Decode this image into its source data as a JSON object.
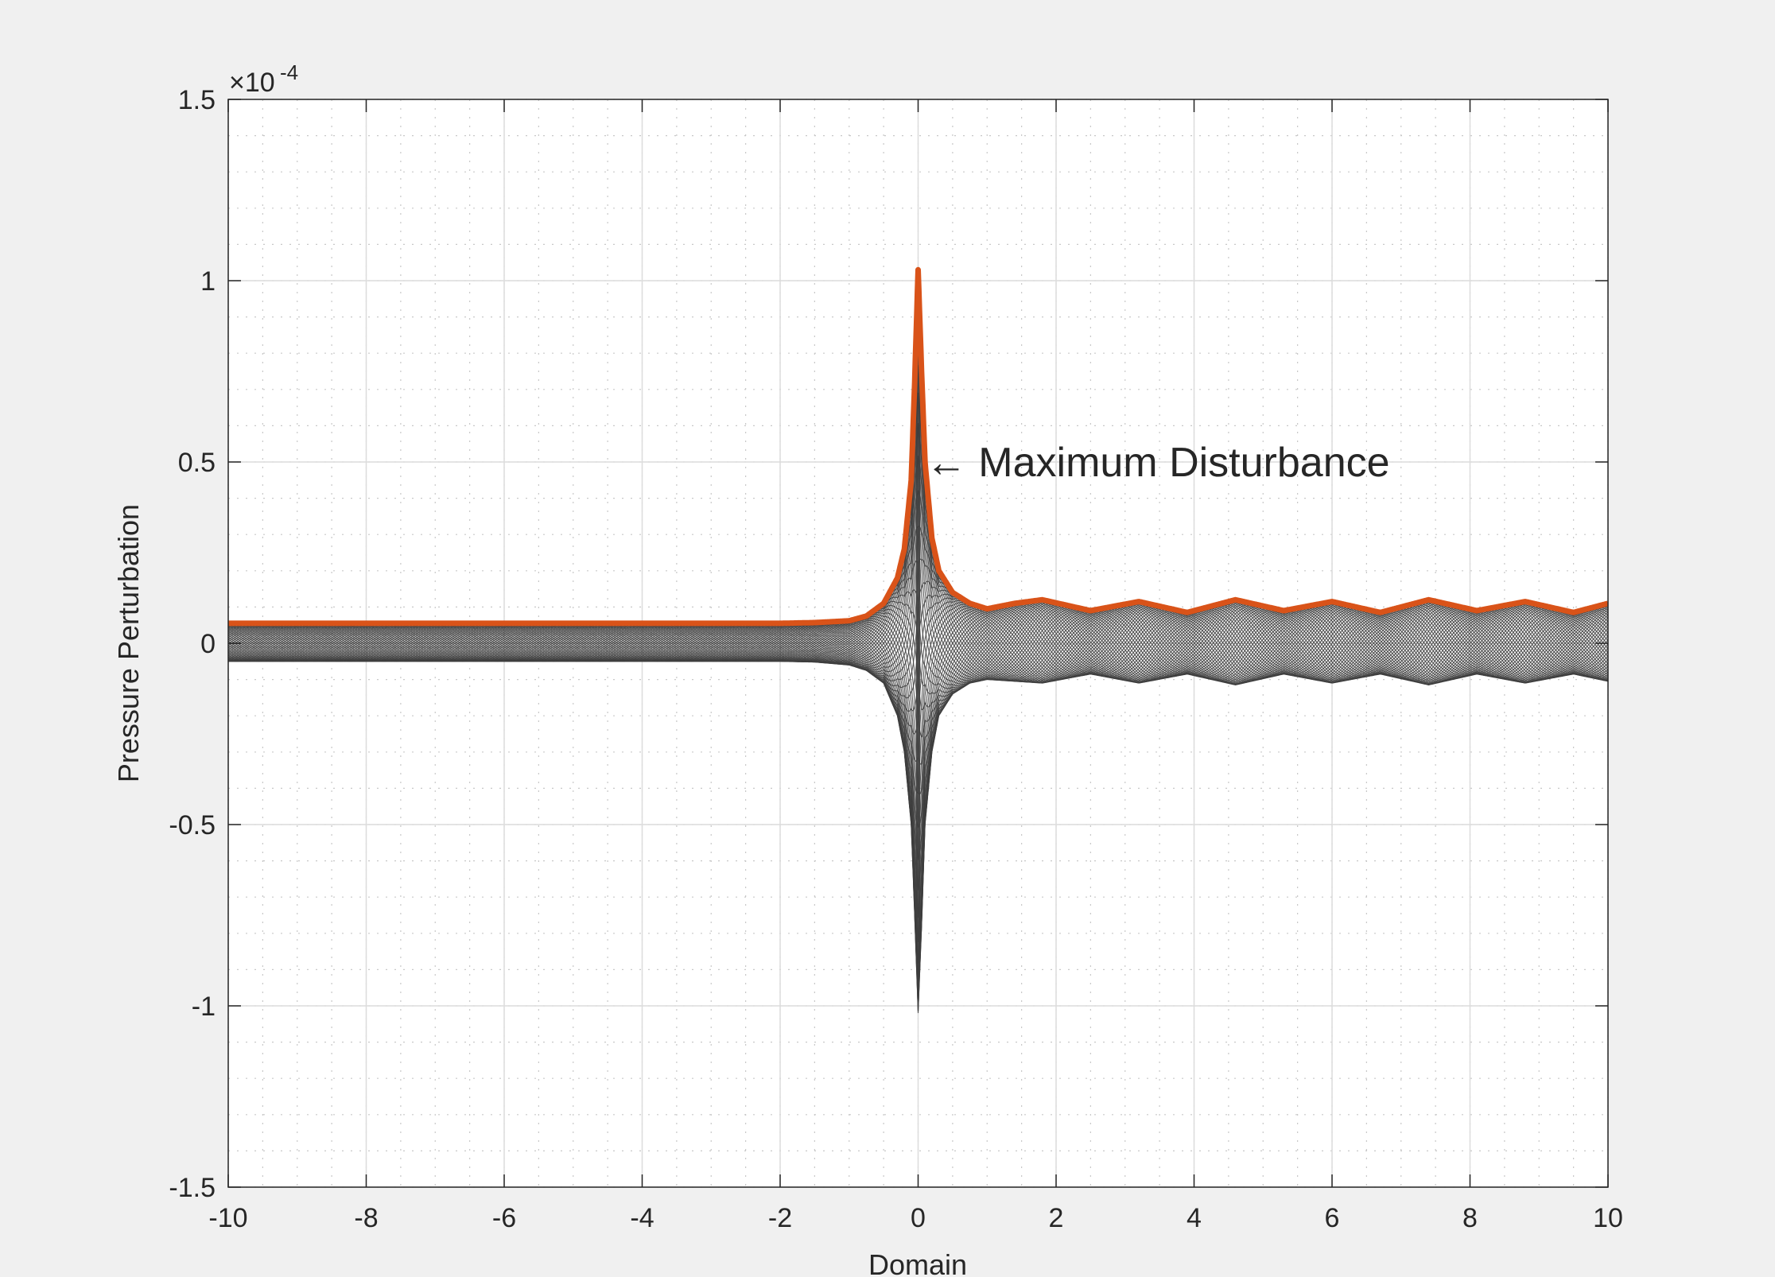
{
  "chart_data": {
    "type": "line",
    "title": "",
    "xlabel": "Domain",
    "ylabel": "Pressure Perturbation",
    "exponent_label": "×10",
    "exponent_power": "-4",
    "xlim": [
      -10,
      10
    ],
    "ylim": [
      -1.5,
      1.5
    ],
    "y_scale_factor": 0.0001,
    "x_ticks": [
      -10,
      -8,
      -6,
      -4,
      -2,
      0,
      2,
      4,
      6,
      8,
      10
    ],
    "x_tick_labels": [
      "-10",
      "-8",
      "-6",
      "-4",
      "-2",
      "0",
      "2",
      "4",
      "6",
      "8",
      "10"
    ],
    "y_ticks": [
      -1.5,
      -1,
      -0.5,
      0,
      0.5,
      1,
      1.5
    ],
    "y_tick_labels": [
      "-1.5",
      "-1",
      "-0.5",
      "0",
      "0.5",
      "1",
      "1.5"
    ],
    "grid": true,
    "minor_grid": true,
    "legend": "none",
    "annotation": {
      "text": "← Maximum Disturbance",
      "x": 0.05,
      "y": 0.5
    },
    "envelope_color": "#D95319",
    "family_color": "#3d3d3d",
    "max_envelope": {
      "x": [
        -10,
        -2,
        -1.5,
        -1,
        -0.75,
        -0.5,
        -0.3,
        -0.2,
        -0.1,
        -0.05,
        0,
        0.05,
        0.1,
        0.2,
        0.3,
        0.5,
        0.75,
        1,
        1.4,
        1.8,
        2.5,
        3.2,
        3.9,
        4.6,
        5.3,
        6.0,
        6.7,
        7.4,
        8.1,
        8.8,
        9.5,
        10
      ],
      "y": [
        0.055,
        0.055,
        0.057,
        0.062,
        0.075,
        0.11,
        0.18,
        0.26,
        0.45,
        0.72,
        1.03,
        0.75,
        0.5,
        0.29,
        0.2,
        0.14,
        0.11,
        0.095,
        0.11,
        0.12,
        0.09,
        0.115,
        0.085,
        0.12,
        0.09,
        0.115,
        0.085,
        0.12,
        0.09,
        0.115,
        0.085,
        0.11
      ]
    },
    "min_envelope": {
      "x": [
        -10,
        -2,
        -1.5,
        -1,
        -0.75,
        -0.5,
        -0.3,
        -0.2,
        -0.1,
        -0.05,
        0,
        0.05,
        0.1,
        0.2,
        0.3,
        0.5,
        0.75,
        1,
        1.4,
        1.8,
        2.5,
        3.2,
        3.9,
        4.6,
        5.3,
        6.0,
        6.7,
        7.4,
        8.1,
        8.8,
        9.5,
        10
      ],
      "y": [
        -0.05,
        -0.05,
        -0.052,
        -0.06,
        -0.075,
        -0.11,
        -0.2,
        -0.3,
        -0.5,
        -0.75,
        -1.02,
        -0.78,
        -0.5,
        -0.3,
        -0.2,
        -0.14,
        -0.11,
        -0.1,
        -0.105,
        -0.11,
        -0.085,
        -0.11,
        -0.085,
        -0.115,
        -0.085,
        -0.11,
        -0.085,
        -0.115,
        -0.085,
        -0.11,
        -0.085,
        -0.105
      ]
    }
  }
}
